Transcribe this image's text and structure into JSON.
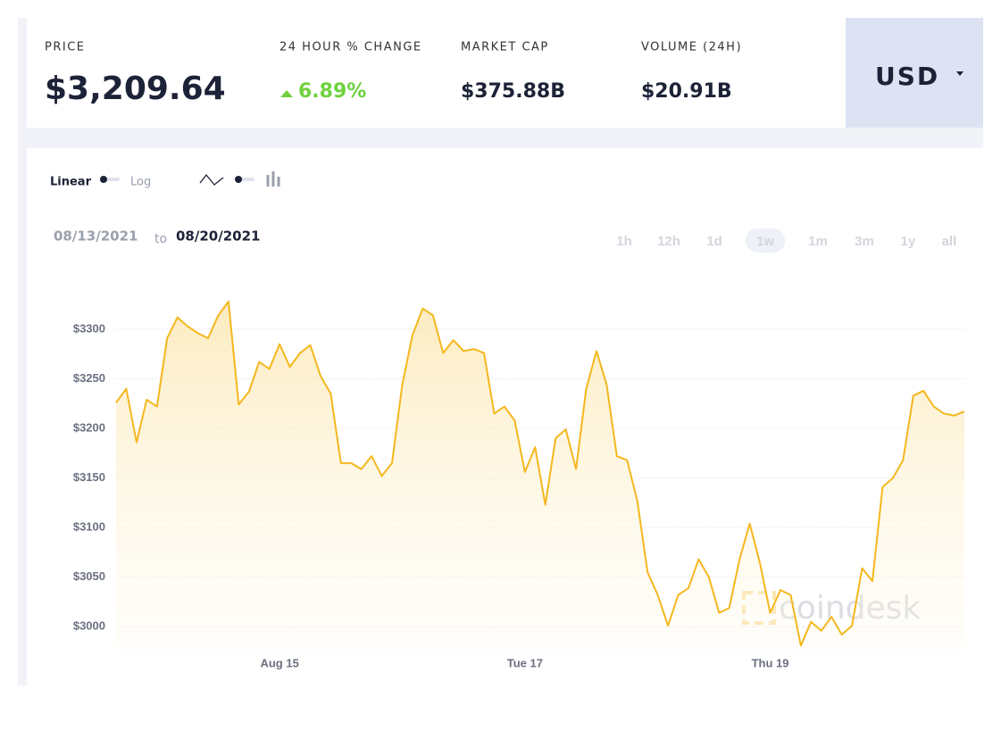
{
  "header": {
    "stats": [
      {
        "label": "PRICE",
        "value": "$3,209.64"
      },
      {
        "label": "24 HOUR % CHANGE",
        "value": "6.89%"
      },
      {
        "label": "MARKET CAP",
        "value": "$375.88B"
      },
      {
        "label": "VOLUME (24H)",
        "value": "$20.91B"
      }
    ],
    "currency": "USD"
  },
  "toolbar": {
    "scale_options": [
      "Linear",
      "Log"
    ],
    "date_from": "08/13/2021",
    "date_sep": "to",
    "date_to": "08/20/2021",
    "ranges": [
      "1h",
      "12h",
      "1d",
      "1w",
      "1m",
      "3m",
      "1y",
      "all"
    ],
    "selected_range": 3
  },
  "watermark": "coindesk",
  "chart_data": {
    "type": "line",
    "color": "#f4b71e",
    "categories": [
      null,
      null,
      null,
      null,
      null,
      null,
      null,
      null,
      null,
      null,
      null,
      null,
      null,
      null,
      null,
      null,
      "Aug 15",
      null,
      null,
      null,
      null,
      null,
      null,
      null,
      null,
      null,
      null,
      null,
      null,
      null,
      null,
      null,
      null,
      null,
      null,
      null,
      null,
      null,
      null,
      null,
      "Tue 17",
      null,
      null,
      null,
      null,
      null,
      null,
      null,
      null,
      null,
      null,
      null,
      null,
      null,
      null,
      null,
      null,
      null,
      null,
      null,
      null,
      null,
      null,
      null,
      "Thu 19",
      null,
      null,
      null,
      null,
      null,
      null,
      null,
      null,
      null,
      null,
      null,
      null,
      null,
      null,
      null,
      null,
      null,
      null,
      null
    ],
    "values": [
      3226,
      3240,
      3186,
      3229,
      3222,
      3291,
      3312,
      3303,
      3296,
      3291,
      3314,
      3328,
      3224,
      3237,
      3267,
      3260,
      3285,
      3262,
      3276,
      3284,
      3253,
      3235,
      3165,
      3165,
      3159,
      3172,
      3152,
      3165,
      3244,
      3294,
      3321,
      3314,
      3276,
      3289,
      3278,
      3280,
      3276,
      3215,
      3222,
      3208,
      3156,
      3181,
      3123,
      3190,
      3199,
      3159,
      3240,
      3278,
      3244,
      3172,
      3168,
      3127,
      3055,
      3032,
      3001,
      3032,
      3039,
      3068,
      3050,
      3014,
      3019,
      3068,
      3104,
      3064,
      3014,
      3037,
      3032,
      2981,
      3005,
      2996,
      3010,
      2992,
      3001,
      3059,
      3046,
      3141,
      3150,
      3168,
      3233,
      3238,
      3222,
      3215,
      3213,
      3217
    ],
    "ylim": [
      2975,
      3335
    ],
    "yticks": [
      {
        "value": 3000,
        "label": "$3000"
      },
      {
        "value": 3050,
        "label": "$3050"
      },
      {
        "value": 3100,
        "label": "$3100"
      },
      {
        "value": 3150,
        "label": "$3150"
      },
      {
        "value": 3200,
        "label": "$3200"
      },
      {
        "value": 3250,
        "label": "$3250"
      },
      {
        "value": 3300,
        "label": "$3300"
      }
    ],
    "grid": true
  }
}
